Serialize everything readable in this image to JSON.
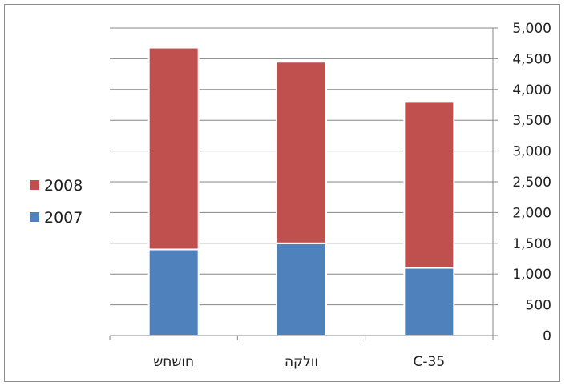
{
  "chart_data": {
    "type": "bar",
    "stacked": true,
    "title": "",
    "xlabel": "",
    "ylabel": "",
    "categories": [
      "חושחש",
      "וולקה",
      "C-35"
    ],
    "series": [
      {
        "name": "2007",
        "color": "#4f81bd",
        "values": [
          1400,
          1500,
          1100
        ]
      },
      {
        "name": "2008",
        "color": "#c0504d",
        "values": [
          3280,
          2950,
          2710
        ]
      }
    ],
    "ylim": [
      0,
      5000
    ],
    "yticks": [
      "0",
      "500",
      "1,000",
      "1,500",
      "2,000",
      "2,500",
      "3,000",
      "3,500",
      "4,000",
      "4,500",
      "5,000"
    ],
    "y_axis_position": "right",
    "grid": true,
    "legend_position": "left",
    "legend_order": [
      "2008",
      "2007"
    ]
  }
}
